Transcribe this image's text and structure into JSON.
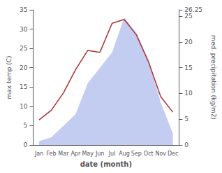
{
  "chart_data": {
    "type": "line",
    "xlabel": "date (month)",
    "ylabel": "max temp (C)",
    "y2label": "med. precipitation (kg/m2)",
    "categories": [
      "Jan",
      "Feb",
      "Mar",
      "Apr",
      "May",
      "Jun",
      "Jul",
      "Aug",
      "Sep",
      "Oct",
      "Nov",
      "Dec"
    ],
    "series": [
      {
        "type": "area",
        "color": "#b8c4ee",
        "values": [
          1.0,
          2.0,
          5.0,
          8.0,
          16.0,
          20.0,
          24.0,
          33.0,
          29.0,
          22.0,
          11.0,
          3.0
        ]
      },
      {
        "type": "line",
        "color": "#b03030",
        "values": [
          6.5,
          9.0,
          13.5,
          19.5,
          24.5,
          24.0,
          31.5,
          32.5,
          28.5,
          21.5,
          12.5,
          8.5
        ]
      }
    ],
    "ylim": [
      0,
      35
    ],
    "yticks": [
      0,
      5,
      10,
      15,
      20,
      25,
      30,
      35
    ],
    "y2lim": [
      0,
      26.25
    ],
    "y2ticks": [
      0,
      5,
      10,
      15,
      20,
      25
    ],
    "grid": false
  }
}
